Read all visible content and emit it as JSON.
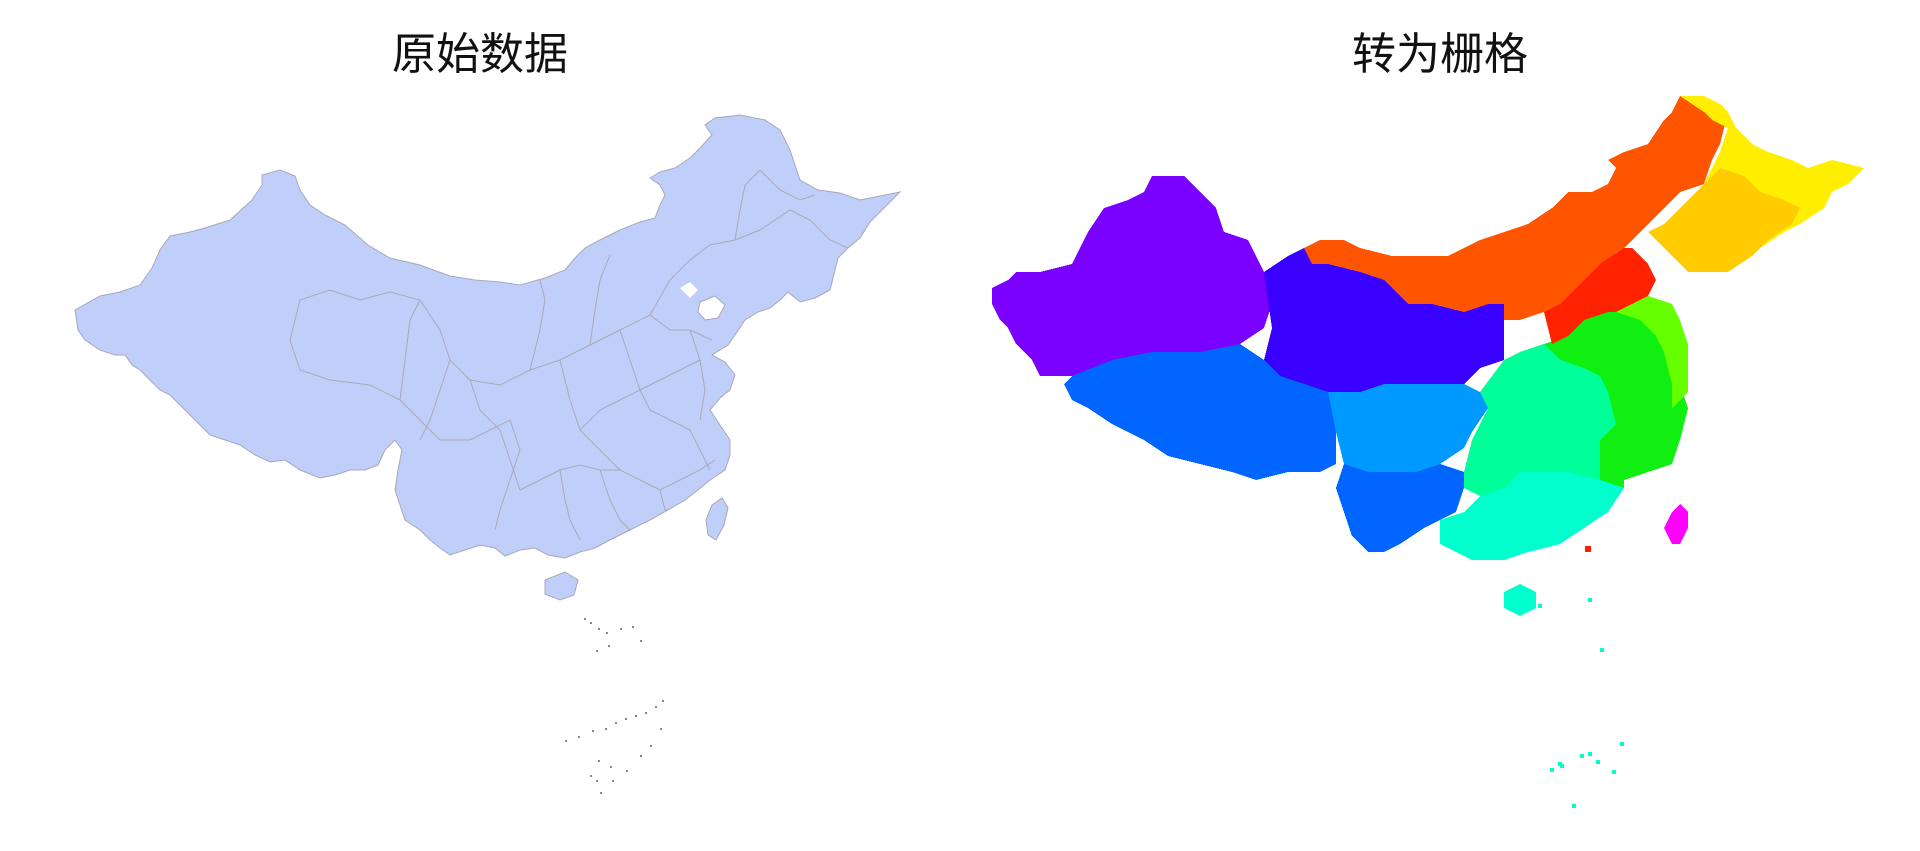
{
  "left_panel": {
    "title": "原始数据",
    "fill": "#bfcffa",
    "stroke": "#a8a8b8"
  },
  "right_panel": {
    "title": "转为栅格",
    "colors": {
      "purple": "#7a00ff",
      "indigo": "#3a00ff",
      "blue": "#0066ff",
      "azure": "#0099ff",
      "cyan": "#00ffcc",
      "spring": "#00ff99",
      "green": "#11ee11",
      "lime": "#66ff00",
      "orange": "#ff5500",
      "red": "#ff2200",
      "yellow": "#ffee00",
      "gold": "#ffcc00",
      "magenta": "#ff00ff"
    }
  }
}
